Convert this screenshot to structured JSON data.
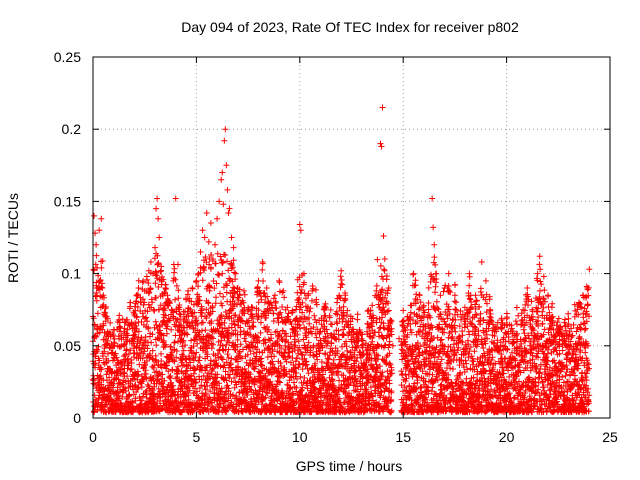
{
  "chart_data": {
    "type": "scatter",
    "title": "Day 094 of 2023, Rate Of TEC Index for receiver p802",
    "xlabel": "GPS time / hours",
    "ylabel": "ROTI / TECUs",
    "xlim": [
      0,
      25
    ],
    "ylim": [
      0,
      0.25
    ],
    "x_ticks": [
      0,
      5,
      10,
      15,
      20,
      25
    ],
    "x_tick_labels": [
      "0",
      "5",
      "10",
      "15",
      "20",
      "25"
    ],
    "y_ticks": [
      0,
      0.05,
      0.1,
      0.15,
      0.2,
      0.25
    ],
    "y_tick_labels": [
      "0",
      "0.05",
      "0.1",
      "0.15",
      "0.2",
      "0.25"
    ],
    "grid": true,
    "marker": "+",
    "color": "#ff0000",
    "series": [
      {
        "name": "ROTI",
        "points": [
          [
            0.05,
            0.14
          ],
          [
            0.1,
            0.128
          ],
          [
            0.15,
            0.12
          ],
          [
            0.2,
            0.104
          ],
          [
            0.3,
            0.13
          ],
          [
            0.35,
            0.095
          ],
          [
            0.4,
            0.138
          ],
          [
            0.45,
            0.09
          ],
          [
            0.5,
            0.085
          ],
          [
            0.6,
            0.07
          ],
          [
            0.7,
            0.058
          ],
          [
            0.8,
            0.05
          ],
          [
            0.9,
            0.045
          ],
          [
            1.0,
            0.042
          ],
          [
            1.2,
            0.05
          ],
          [
            1.3,
            0.06
          ],
          [
            1.5,
            0.06
          ],
          [
            1.7,
            0.065
          ],
          [
            1.8,
            0.08
          ],
          [
            2.0,
            0.072
          ],
          [
            2.1,
            0.085
          ],
          [
            2.2,
            0.09
          ],
          [
            2.3,
            0.08
          ],
          [
            2.4,
            0.094
          ],
          [
            2.5,
            0.088
          ],
          [
            2.6,
            0.098
          ],
          [
            2.7,
            0.102
          ],
          [
            2.8,
            0.108
          ],
          [
            2.9,
            0.1
          ],
          [
            3.0,
            0.118
          ],
          [
            3.05,
            0.145
          ],
          [
            3.1,
            0.152
          ],
          [
            3.15,
            0.138
          ],
          [
            3.2,
            0.125
          ],
          [
            3.3,
            0.105
          ],
          [
            3.4,
            0.096
          ],
          [
            3.5,
            0.09
          ],
          [
            3.6,
            0.085
          ],
          [
            3.7,
            0.08
          ],
          [
            3.8,
            0.075
          ],
          [
            4.0,
            0.152
          ],
          [
            4.2,
            0.06
          ],
          [
            4.4,
            0.07
          ],
          [
            4.5,
            0.082
          ],
          [
            4.6,
            0.088
          ],
          [
            4.8,
            0.09
          ],
          [
            5.0,
            0.095
          ],
          [
            5.1,
            0.1
          ],
          [
            5.2,
            0.115
          ],
          [
            5.3,
            0.13
          ],
          [
            5.4,
            0.125
          ],
          [
            5.5,
            0.142
          ],
          [
            5.6,
            0.122
          ],
          [
            5.7,
            0.135
          ],
          [
            5.8,
            0.11
          ],
          [
            5.9,
            0.12
          ],
          [
            6.0,
            0.138
          ],
          [
            6.1,
            0.15
          ],
          [
            6.2,
            0.165
          ],
          [
            6.25,
            0.17
          ],
          [
            6.3,
            0.148
          ],
          [
            6.35,
            0.192
          ],
          [
            6.4,
            0.2
          ],
          [
            6.45,
            0.175
          ],
          [
            6.5,
            0.158
          ],
          [
            6.55,
            0.142
          ],
          [
            6.6,
            0.145
          ],
          [
            6.7,
            0.125
          ],
          [
            6.8,
            0.118
          ],
          [
            6.9,
            0.1
          ],
          [
            7.0,
            0.09
          ],
          [
            7.1,
            0.085
          ],
          [
            7.3,
            0.088
          ],
          [
            7.5,
            0.075
          ],
          [
            7.7,
            0.07
          ],
          [
            7.9,
            0.072
          ],
          [
            8.0,
            0.095
          ],
          [
            8.2,
            0.108
          ],
          [
            8.4,
            0.09
          ],
          [
            8.6,
            0.08
          ],
          [
            8.8,
            0.085
          ],
          [
            9.0,
            0.095
          ],
          [
            9.2,
            0.088
          ],
          [
            9.4,
            0.07
          ],
          [
            9.6,
            0.065
          ],
          [
            9.8,
            0.06
          ],
          [
            10.0,
            0.134
          ],
          [
            10.05,
            0.13
          ],
          [
            10.2,
            0.1
          ],
          [
            10.4,
            0.085
          ],
          [
            10.6,
            0.088
          ],
          [
            10.8,
            0.082
          ],
          [
            11.0,
            0.06
          ],
          [
            11.2,
            0.075
          ],
          [
            11.5,
            0.065
          ],
          [
            11.8,
            0.08
          ],
          [
            12.0,
            0.102
          ],
          [
            12.2,
            0.085
          ],
          [
            12.5,
            0.06
          ],
          [
            12.8,
            0.055
          ],
          [
            13.0,
            0.05
          ],
          [
            13.3,
            0.065
          ],
          [
            13.5,
            0.078
          ],
          [
            13.7,
            0.088
          ],
          [
            13.8,
            0.085
          ],
          [
            13.9,
            0.19
          ],
          [
            13.95,
            0.188
          ],
          [
            14.0,
            0.215
          ],
          [
            14.05,
            0.126
          ],
          [
            14.1,
            0.102
          ],
          [
            14.2,
            0.096
          ],
          [
            14.3,
            0.09
          ],
          [
            14.4,
            0.06
          ],
          [
            14.5,
            0.05
          ],
          [
            14.8,
            0.055
          ],
          [
            15.0,
            0.06
          ],
          [
            15.2,
            0.07
          ],
          [
            15.4,
            0.078
          ],
          [
            15.5,
            0.1
          ],
          [
            15.6,
            0.092
          ],
          [
            15.8,
            0.085
          ],
          [
            16.0,
            0.07
          ],
          [
            16.2,
            0.065
          ],
          [
            16.4,
            0.152
          ],
          [
            16.45,
            0.132
          ],
          [
            16.5,
            0.12
          ],
          [
            16.6,
            0.1
          ],
          [
            16.8,
            0.085
          ],
          [
            17.0,
            0.09
          ],
          [
            17.2,
            0.1
          ],
          [
            17.5,
            0.085
          ],
          [
            17.8,
            0.07
          ],
          [
            18.0,
            0.065
          ],
          [
            18.2,
            0.1
          ],
          [
            18.5,
            0.085
          ],
          [
            18.8,
            0.108
          ],
          [
            19.0,
            0.095
          ],
          [
            19.2,
            0.075
          ],
          [
            19.5,
            0.06
          ],
          [
            19.8,
            0.065
          ],
          [
            20.0,
            0.058
          ],
          [
            20.2,
            0.06
          ],
          [
            20.5,
            0.065
          ],
          [
            20.8,
            0.075
          ],
          [
            21.0,
            0.09
          ],
          [
            21.2,
            0.07
          ],
          [
            21.5,
            0.1
          ],
          [
            21.6,
            0.112
          ],
          [
            21.8,
            0.098
          ],
          [
            22.0,
            0.085
          ],
          [
            22.2,
            0.07
          ],
          [
            22.5,
            0.06
          ],
          [
            22.8,
            0.055
          ],
          [
            23.0,
            0.065
          ],
          [
            23.3,
            0.07
          ],
          [
            23.5,
            0.08
          ],
          [
            23.7,
            0.085
          ],
          [
            23.9,
            0.09
          ],
          [
            24.0,
            0.103
          ]
        ]
      }
    ]
  }
}
